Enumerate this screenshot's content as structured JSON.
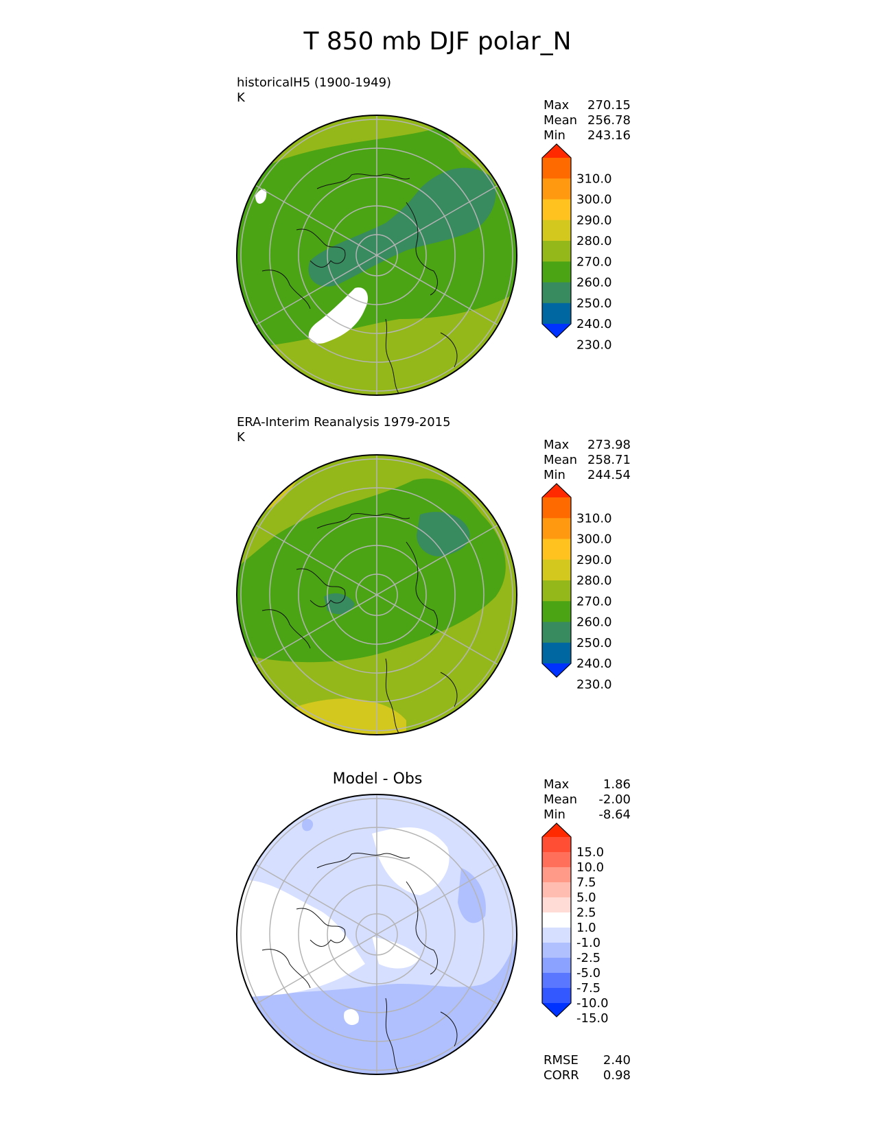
{
  "figure": {
    "title": "T 850 mb DJF polar_N"
  },
  "panels": [
    {
      "id": "model",
      "label_line1": "historicalH5 (1900-1949)",
      "label_line2": "K",
      "center_title": "",
      "stats": [
        {
          "name": "Max",
          "value": "270.15"
        },
        {
          "name": "Mean",
          "value": "256.78"
        },
        {
          "name": "Min",
          "value": "243.16"
        }
      ],
      "colorbar": {
        "ticks": [
          "310.0",
          "300.0",
          "290.0",
          "280.0",
          "270.0",
          "260.0",
          "250.0",
          "240.0",
          "230.0"
        ],
        "colors": [
          "#ff2a00",
          "#ff6a00",
          "#ff9a10",
          "#ffc21f",
          "#d2c81e",
          "#94b81a",
          "#4aa414",
          "#388a5f",
          "#0067a0",
          "#0032ff"
        ]
      }
    },
    {
      "id": "obs",
      "label_line1": "ERA-Interim Reanalysis 1979-2015",
      "label_line2": "K",
      "center_title": "",
      "stats": [
        {
          "name": "Max",
          "value": "273.98"
        },
        {
          "name": "Mean",
          "value": "258.71"
        },
        {
          "name": "Min",
          "value": "244.54"
        }
      ],
      "colorbar": {
        "ticks": [
          "310.0",
          "300.0",
          "290.0",
          "280.0",
          "270.0",
          "260.0",
          "250.0",
          "240.0",
          "230.0"
        ],
        "colors": [
          "#ff2a00",
          "#ff6a00",
          "#ff9a10",
          "#ffc21f",
          "#d2c81e",
          "#94b81a",
          "#4aa414",
          "#388a5f",
          "#0067a0",
          "#0032ff"
        ]
      }
    },
    {
      "id": "diff",
      "label_line1": "",
      "label_line2": "",
      "center_title": "Model - Obs",
      "stats": [
        {
          "name": "Max",
          "value": "1.86"
        },
        {
          "name": "Mean",
          "value": "-2.00"
        },
        {
          "name": "Min",
          "value": "-8.64"
        }
      ],
      "colorbar": {
        "ticks": [
          "15.0",
          "10.0",
          "7.5",
          "5.0",
          "2.5",
          "1.0",
          "-1.0",
          "-2.5",
          "-5.0",
          "-7.5",
          "-10.0",
          "-15.0"
        ],
        "colors": [
          "#ff2a00",
          "#ff4e33",
          "#ff6f5a",
          "#ff9a88",
          "#ffbcb0",
          "#ffdcd6",
          "#ffffff",
          "#d6dfff",
          "#b0c0ff",
          "#8ca2ff",
          "#5a78ff",
          "#3358ff",
          "#0032ff"
        ]
      },
      "extra_stats": [
        {
          "name": "RMSE",
          "value": "2.40"
        },
        {
          "name": "CORR",
          "value": "0.98"
        }
      ]
    }
  ]
}
